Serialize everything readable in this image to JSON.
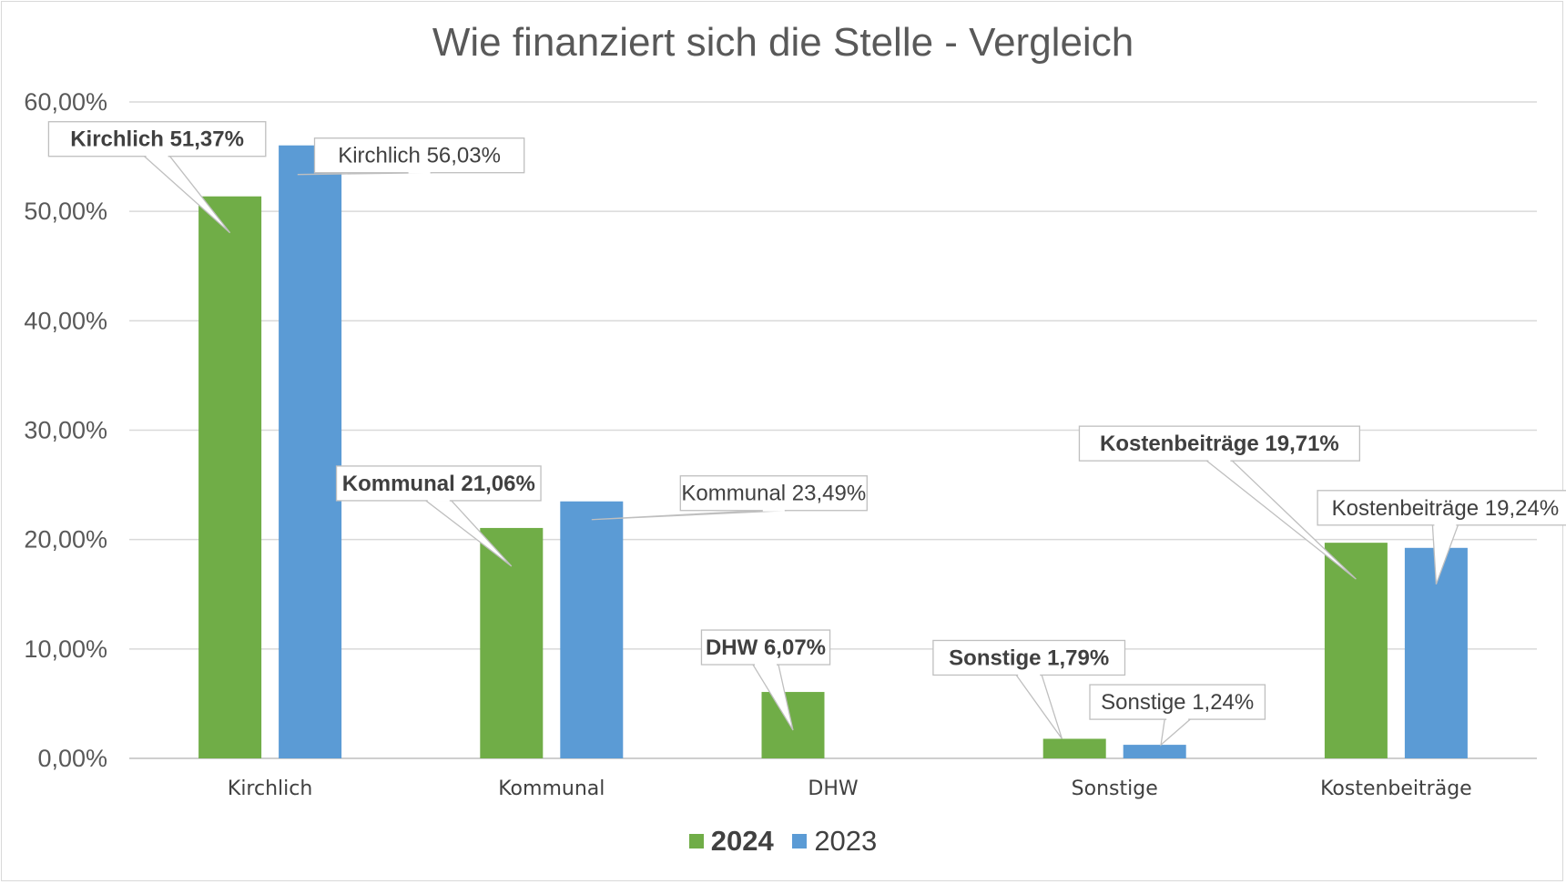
{
  "chart_data": {
    "type": "bar",
    "title": "Wie finanziert sich die Stelle - Vergleich",
    "categories": [
      "Kirchlich",
      "Kommunal",
      "DHW",
      "Sonstige",
      "Kostenbeiträge"
    ],
    "series": [
      {
        "name": "2024",
        "color": "#70ad47",
        "values": [
          51.37,
          21.06,
          6.07,
          1.79,
          19.71
        ],
        "labels": [
          "Kirchlich 51,37%",
          "Kommunal 21,06%",
          "DHW 6,07%",
          "Sonstige 1,79%",
          "Kostenbeiträge 19,71%"
        ]
      },
      {
        "name": "2023",
        "color": "#5b9bd5",
        "values": [
          56.03,
          23.49,
          null,
          1.24,
          19.24
        ],
        "labels": [
          "Kirchlich  56,03%",
          "Kommunal 23,49%",
          "",
          "Sonstige 1,24%",
          "Kostenbeiträge 19,24%"
        ]
      }
    ],
    "yticks": [
      "0,00%",
      "10,00%",
      "20,00%",
      "30,00%",
      "40,00%",
      "50,00%",
      "60,00%"
    ],
    "ylim": [
      0,
      60
    ],
    "grid": true,
    "legend_position": "bottom"
  }
}
